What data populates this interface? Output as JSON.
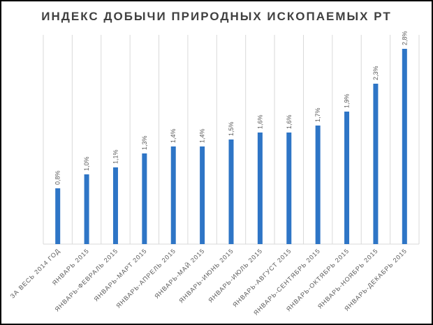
{
  "chart_data": {
    "type": "bar",
    "title": "ИНДЕКС ДОБЫЧИ ПРИРОДНЫХ ИСКОПАЕМЫХ РТ",
    "categories": [
      "ЗА ВЕСЬ 2014 ГОД",
      "ЯНВАРЬ 2015",
      "ЯНВАРЬ-ФЕВРАЛЬ 2015",
      "ЯНВАРЬ-МАРТ 2015",
      "ЯНВАРЬ-АПРЕЛЬ 2015",
      "ЯНВАРЬ-МАЙ 2015",
      "ЯНВАРЬ-ИЮНЬ 2015",
      "ЯНВАРЬ-ИЮЛЬ 2015",
      "ЯНВАРЬ-АВГУСТ 2015",
      "ЯНВАРЬ-СЕНТЯБРЬ 2015",
      "ЯНВАРЬ-ОКТЯБРЬ 2015",
      "ЯНВАРЬ-НОЯБРЬ 2015",
      "ЯНВАРЬ-ДЕКАБРЬ 2015"
    ],
    "values": [
      0.8,
      1.0,
      1.1,
      1.3,
      1.4,
      1.4,
      1.5,
      1.6,
      1.6,
      1.7,
      1.9,
      2.3,
      2.8
    ],
    "data_labels": [
      "0,8%",
      "1,0%",
      "1,1%",
      "1,3%",
      "1,4%",
      "1,4%",
      "1,5%",
      "1,6%",
      "1,6%",
      "1,7%",
      "1,9%",
      "2,3%",
      "2,8%"
    ],
    "xlabel": "",
    "ylabel": "",
    "ylim": [
      0,
      3.0
    ],
    "grid": "vertical category gridlines",
    "bar_color": "#2e75c6"
  }
}
